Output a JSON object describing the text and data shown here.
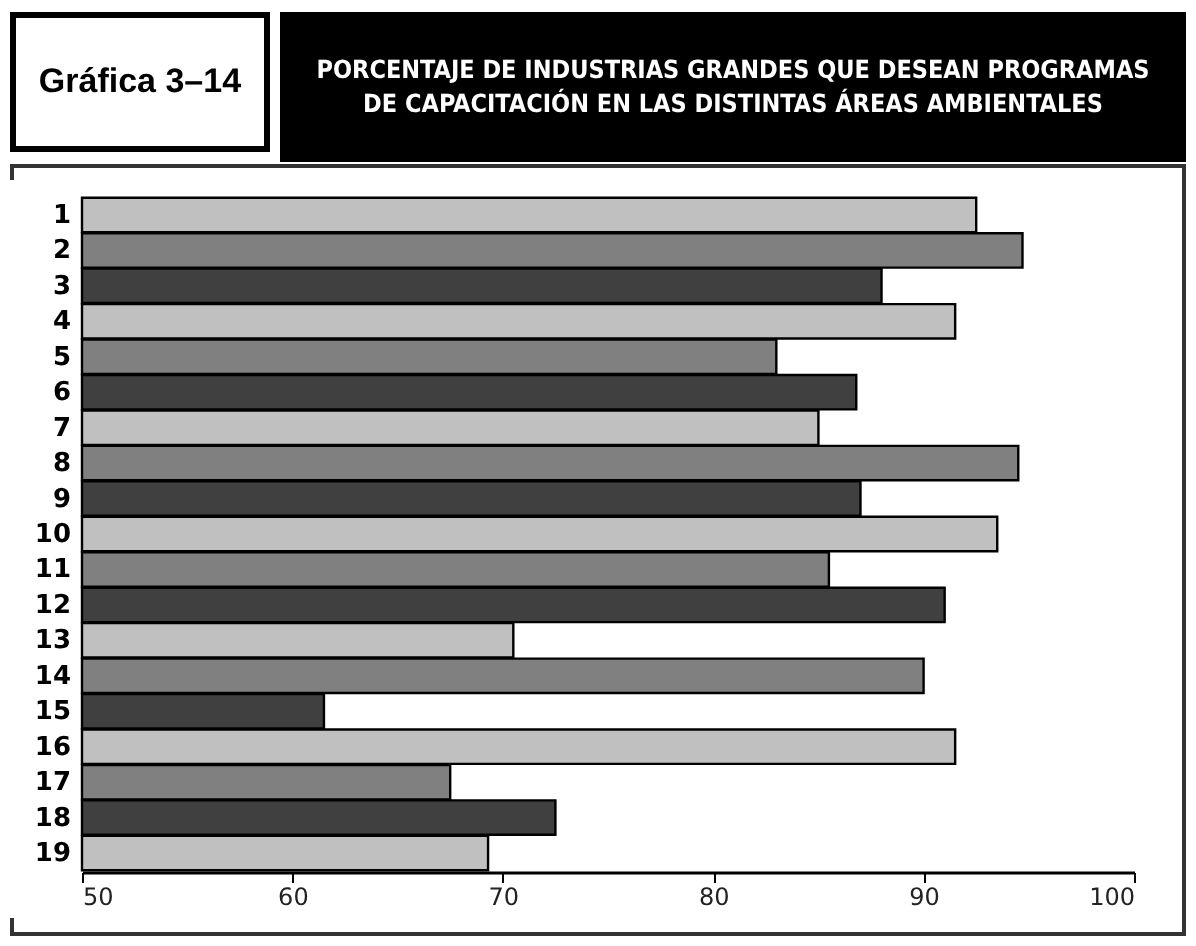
{
  "chart_data": {
    "type": "bar",
    "orientation": "horizontal",
    "title": "PORCENTAJE DE INDUSTRIAS GRANDES QUE DESEAN PROGRAMAS DE CAPACITACIÓN EN LAS DISTINTAS ÁREAS AMBIENTALES",
    "annotations": [
      "Gráfica 3–14"
    ],
    "categories": [
      "1",
      "2",
      "3",
      "4",
      "5",
      "6",
      "7",
      "8",
      "9",
      "10",
      "11",
      "12",
      "13",
      "14",
      "15",
      "16",
      "17",
      "18",
      "19"
    ],
    "values": [
      92.5,
      94.7,
      88.0,
      91.5,
      83.0,
      86.8,
      85.0,
      94.5,
      87.0,
      93.5,
      85.5,
      91.0,
      70.5,
      90.0,
      61.5,
      91.5,
      67.5,
      72.5,
      69.3
    ],
    "colors": [
      "#c0c0c0",
      "#808080",
      "#404040",
      "#c0c0c0",
      "#808080",
      "#404040",
      "#c0c0c0",
      "#808080",
      "#404040",
      "#c0c0c0",
      "#808080",
      "#404040",
      "#c0c0c0",
      "#808080",
      "#404040",
      "#c0c0c0",
      "#808080",
      "#404040",
      "#c0c0c0"
    ],
    "xlim": [
      50,
      100
    ],
    "xticks": [
      50,
      60,
      70,
      80,
      90,
      100
    ],
    "grid": false,
    "legend": false
  }
}
